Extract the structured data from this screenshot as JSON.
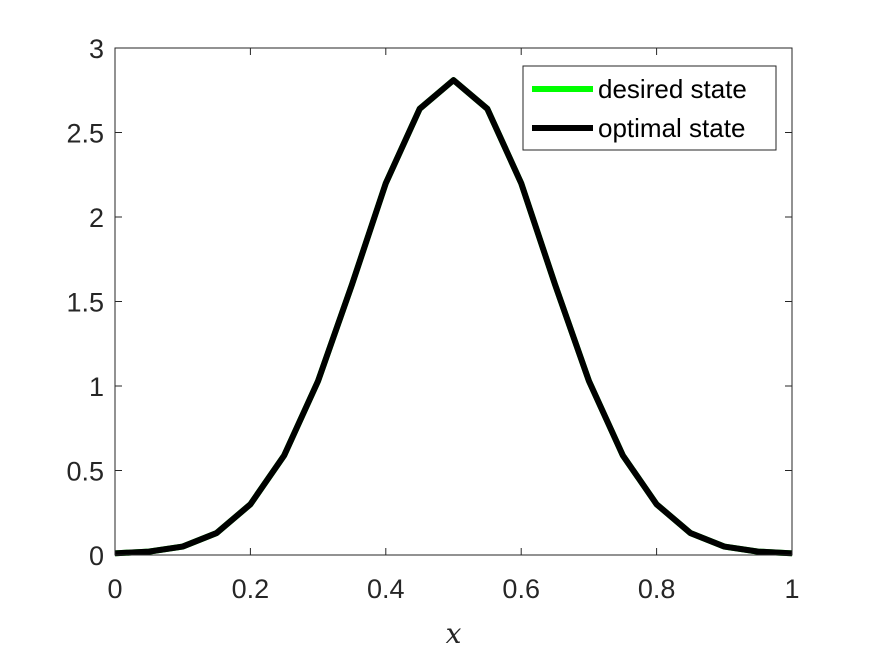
{
  "chart_data": {
    "type": "line",
    "title": "",
    "xlabel": "x",
    "ylabel": "",
    "xlim": [
      0,
      1
    ],
    "ylim": [
      0,
      3
    ],
    "xticks": [
      0,
      0.2,
      0.4,
      0.6,
      0.8,
      1
    ],
    "xtick_labels": [
      "0",
      "0.2",
      "0.4",
      "0.6",
      "0.8",
      "1"
    ],
    "yticks": [
      0,
      0.5,
      1,
      1.5,
      2,
      2.5,
      3
    ],
    "ytick_labels": [
      "0",
      "0.5",
      "1",
      "1.5",
      "2",
      "2.5",
      "3"
    ],
    "grid": false,
    "box": true,
    "legend_position": "top-right",
    "series": [
      {
        "name": "desired state",
        "color": "#00ff00",
        "x": [
          0,
          0.05,
          0.1,
          0.15,
          0.2,
          0.25,
          0.3,
          0.35,
          0.4,
          0.45,
          0.5,
          0.55,
          0.6,
          0.65,
          0.7,
          0.75,
          0.8,
          0.85,
          0.9,
          0.95,
          1
        ],
        "y": [
          0.01,
          0.02,
          0.05,
          0.13,
          0.3,
          0.59,
          1.03,
          1.6,
          2.2,
          2.64,
          2.81,
          2.64,
          2.2,
          1.6,
          1.03,
          0.59,
          0.3,
          0.13,
          0.05,
          0.02,
          0.01
        ]
      },
      {
        "name": "optimal state",
        "color": "#000000",
        "x": [
          0,
          0.05,
          0.1,
          0.15,
          0.2,
          0.25,
          0.3,
          0.35,
          0.4,
          0.45,
          0.5,
          0.55,
          0.6,
          0.65,
          0.7,
          0.75,
          0.8,
          0.85,
          0.9,
          0.95,
          1
        ],
        "y": [
          0.01,
          0.02,
          0.05,
          0.13,
          0.3,
          0.59,
          1.03,
          1.6,
          2.2,
          2.64,
          2.81,
          2.64,
          2.2,
          1.6,
          1.03,
          0.59,
          0.3,
          0.13,
          0.05,
          0.02,
          0.01
        ]
      }
    ]
  }
}
